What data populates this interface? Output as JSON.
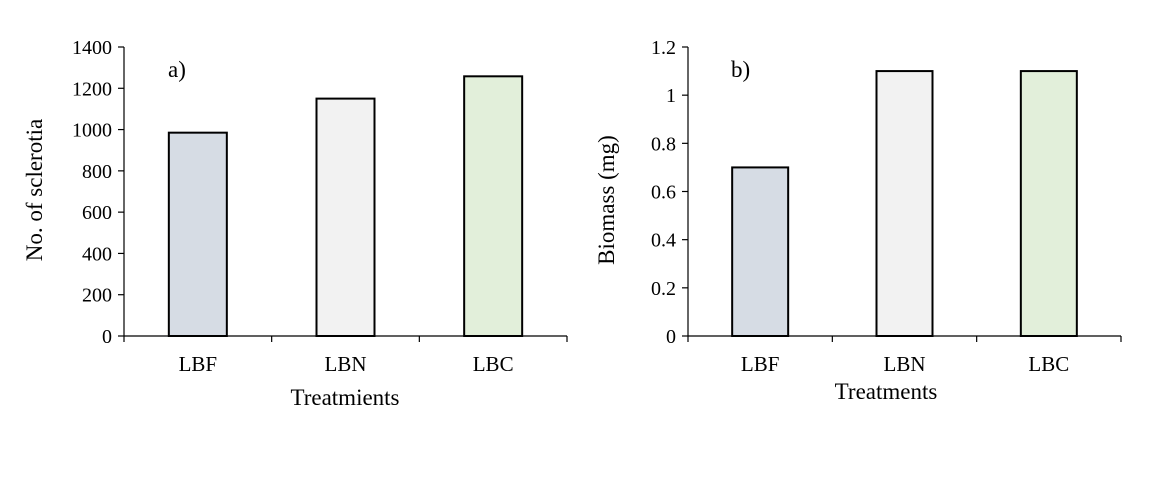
{
  "chart_data": [
    {
      "type": "bar",
      "panel_tag": "a)",
      "categories": [
        "LBF",
        "LBN",
        "LBC"
      ],
      "values": [
        985,
        1150,
        1258
      ],
      "colors": [
        "#d6dce4",
        "#f2f2f2",
        "#e2efda"
      ],
      "xlabel": "Treatmients",
      "ylabel": "No. of sclerotia",
      "ylim": [
        0,
        1400
      ],
      "yticks": [
        "0",
        "200",
        "400",
        "600",
        "800",
        "1000",
        "1200",
        "1400"
      ],
      "grid": false,
      "legend": "none"
    },
    {
      "type": "bar",
      "panel_tag": "b)",
      "categories": [
        "LBF",
        "LBN",
        "LBC"
      ],
      "values": [
        0.7,
        1.1,
        1.1
      ],
      "colors": [
        "#d6dce4",
        "#f2f2f2",
        "#e2efda"
      ],
      "xlabel": "Treatments",
      "ylabel": "Biomass (mg)",
      "ylim": [
        0,
        1.2
      ],
      "yticks": [
        "0",
        "0.2",
        "0.4",
        "0.6",
        "0.8",
        "1",
        "1.2"
      ],
      "grid": false,
      "legend": "none"
    }
  ]
}
